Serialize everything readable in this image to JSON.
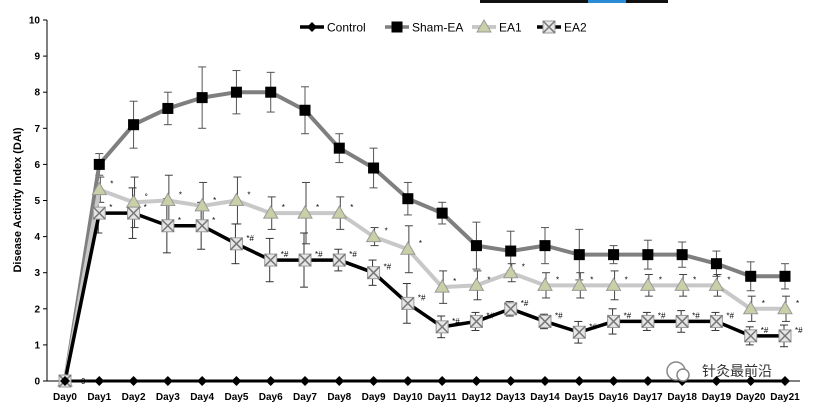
{
  "chart_data": {
    "type": "line",
    "ylabel": "Disease Activity Index (DAI)",
    "xlabel": "",
    "ylim": [
      0,
      10
    ],
    "yticks": [
      "0",
      "1",
      "2",
      "3",
      "4",
      "5",
      "6",
      "7",
      "8",
      "9",
      "10"
    ],
    "categories": [
      "Day0",
      "Day1",
      "Day2",
      "Day3",
      "Day4",
      "Day5",
      "Day6",
      "Day7",
      "Day8",
      "Day9",
      "Day10",
      "Day11",
      "Day12",
      "Day13",
      "Day14",
      "Day15",
      "Day16",
      "Day17",
      "Day18",
      "Day19",
      "Day20",
      "Day21"
    ],
    "legend_position": "top-center",
    "series": [
      {
        "name": "Control",
        "color": "#000000",
        "marker": "diamond",
        "values": [
          0,
          0,
          0,
          0,
          0,
          0,
          0,
          0,
          0,
          0,
          0,
          0,
          0,
          0,
          0,
          0,
          0,
          0,
          0,
          0,
          0,
          0
        ],
        "errors": [
          0,
          0,
          0,
          0,
          0,
          0,
          0,
          0,
          0,
          0,
          0,
          0,
          0,
          0,
          0,
          0,
          0,
          0,
          0,
          0,
          0,
          0
        ]
      },
      {
        "name": "Sham-EA",
        "color": "#7f7f7f",
        "marker": "square",
        "values": [
          0,
          6.0,
          7.1,
          7.55,
          7.85,
          8.0,
          8.0,
          7.5,
          6.45,
          5.9,
          5.05,
          4.65,
          3.75,
          3.6,
          3.75,
          3.5,
          3.5,
          3.5,
          3.5,
          3.25,
          2.9,
          2.9
        ],
        "errors": [
          0,
          0.3,
          0.65,
          0.45,
          0.85,
          0.6,
          0.55,
          0.65,
          0.4,
          0.55,
          0.45,
          0.3,
          0.65,
          0.55,
          0.5,
          0.7,
          0.25,
          0.4,
          0.35,
          0.35,
          0.4,
          0.35
        ]
      },
      {
        "name": "EA1",
        "color": "#c8c8c8",
        "marker": "triangle",
        "values": [
          0,
          5.3,
          4.95,
          5.0,
          4.85,
          5.0,
          4.65,
          4.65,
          4.65,
          4.0,
          3.65,
          2.6,
          2.65,
          3.0,
          2.65,
          2.65,
          2.65,
          2.65,
          2.65,
          2.65,
          2.0,
          2.0
        ],
        "errors": [
          0,
          0.35,
          0.7,
          0.7,
          0.65,
          0.65,
          0.45,
          0.85,
          0.45,
          0.25,
          0.65,
          0.45,
          0.4,
          0.25,
          0.35,
          0.35,
          0.4,
          0.3,
          0.3,
          0.3,
          0.35,
          0.35
        ]
      },
      {
        "name": "EA2",
        "color": "#000000",
        "marker": "x-square",
        "values": [
          0,
          4.65,
          4.65,
          4.3,
          4.3,
          3.8,
          3.35,
          3.35,
          3.35,
          3.0,
          2.15,
          1.5,
          1.65,
          2.0,
          1.65,
          1.35,
          1.65,
          1.65,
          1.65,
          1.65,
          1.25,
          1.25
        ],
        "errors": [
          0,
          0.55,
          0.7,
          0.75,
          0.65,
          0.55,
          0.6,
          0.75,
          0.3,
          0.35,
          0.55,
          0.3,
          0.25,
          0.2,
          0.2,
          0.3,
          0.35,
          0.25,
          0.3,
          0.25,
          0.25,
          0.3
        ]
      }
    ],
    "annotations": {
      "day0_label": "0",
      "ea1_marks": [
        "",
        "*",
        "°",
        "*",
        "*",
        "*",
        "*",
        "*",
        "*",
        "*",
        "*",
        "*",
        "*",
        "*",
        "*",
        "*",
        "*",
        "*",
        "*",
        "*",
        "*",
        "*"
      ],
      "ea2_marks": [
        "",
        "*",
        "*",
        "*",
        "*",
        "*#",
        "*#",
        "*#",
        "*#",
        "*#",
        "*#",
        "*#",
        "*#",
        "*#",
        "*#",
        "*#",
        "*#",
        "*#",
        "*#",
        "*#",
        "*#",
        "*#"
      ]
    },
    "watermark": "针灸最前沿"
  }
}
